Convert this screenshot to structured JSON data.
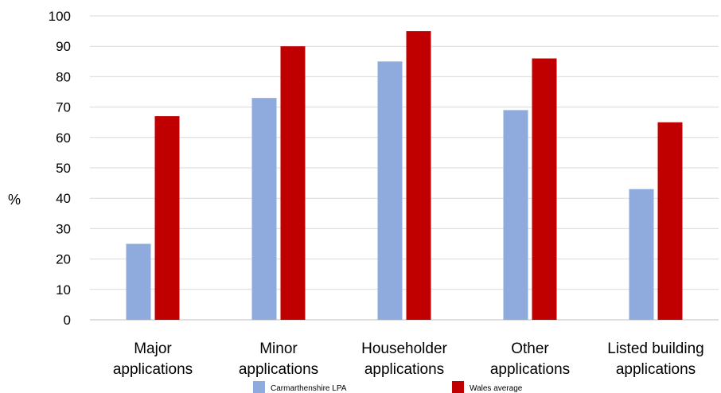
{
  "chart_data": {
    "type": "bar",
    "title": "",
    "xlabel": "",
    "ylabel": "%",
    "ylim": [
      0,
      100
    ],
    "yticks": [
      0,
      10,
      20,
      30,
      40,
      50,
      60,
      70,
      80,
      90,
      100
    ],
    "grid": true,
    "legend_position": "bottom",
    "categories": [
      [
        "Major",
        "applications"
      ],
      [
        "Minor",
        "applications"
      ],
      [
        "Householder",
        "applications"
      ],
      [
        "Other",
        "applications"
      ],
      [
        "Listed building",
        "applications"
      ]
    ],
    "series": [
      {
        "name": "Carmarthenshire LPA",
        "color": "#8FAADC",
        "values": [
          25,
          73,
          85,
          69,
          43
        ]
      },
      {
        "name": "Wales average",
        "color": "#C00000",
        "values": [
          67,
          90,
          95,
          86,
          65
        ]
      }
    ]
  }
}
